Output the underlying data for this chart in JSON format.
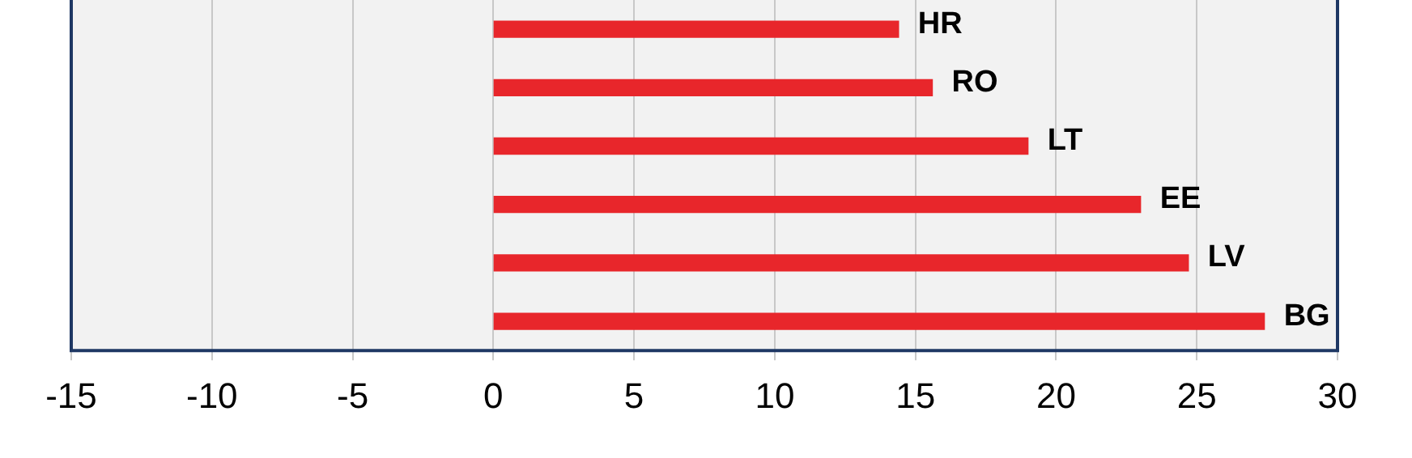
{
  "chart_data": {
    "type": "bar",
    "orientation": "horizontal",
    "categories": [
      "HR",
      "RO",
      "LT",
      "EE",
      "LV",
      "BG"
    ],
    "values": [
      14.4,
      15.6,
      19.0,
      23.0,
      24.7,
      27.4
    ],
    "color": "#e8262b",
    "xlim": [
      -15,
      30
    ],
    "xticks": [
      -15,
      -10,
      -5,
      0,
      5,
      10,
      15,
      20,
      25,
      30
    ],
    "grid": "x",
    "legend": false
  }
}
